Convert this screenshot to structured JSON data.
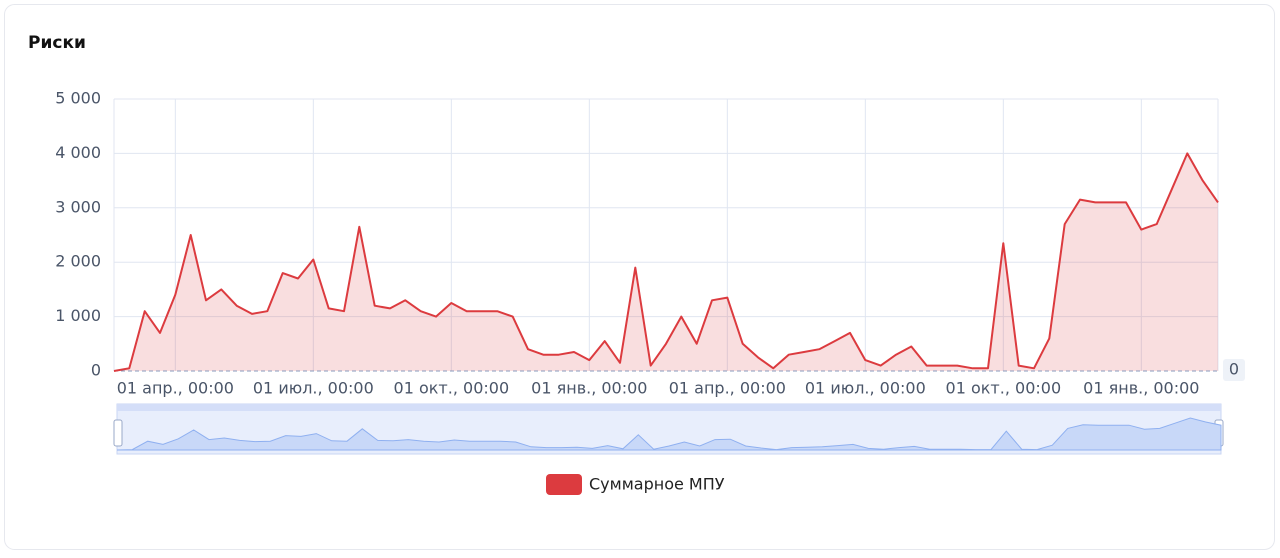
{
  "chart_data": {
    "type": "line",
    "title": "Риски",
    "categories": [
      null,
      null,
      null,
      null,
      "01 апр., 00:00",
      null,
      null,
      null,
      null,
      null,
      null,
      null,
      null,
      "01 июл., 00:00",
      null,
      null,
      null,
      null,
      null,
      null,
      null,
      null,
      "01 окт., 00:00",
      null,
      null,
      null,
      null,
      null,
      null,
      null,
      null,
      "01 янв., 00:00",
      null,
      null,
      null,
      null,
      null,
      null,
      null,
      null,
      "01 апр., 00:00",
      null,
      null,
      null,
      null,
      null,
      null,
      null,
      null,
      "01 июл., 00:00",
      null,
      null,
      null,
      null,
      null,
      null,
      null,
      null,
      "01 окт., 00:00",
      null,
      null,
      null,
      null,
      null,
      null,
      null,
      null,
      "01 янв., 00:00",
      null,
      null,
      null,
      null,
      null
    ],
    "series": [
      {
        "name": "Суммарное МПУ",
        "color": "#dc3b3f",
        "values": [
          0,
          50,
          1100,
          700,
          1400,
          2500,
          1300,
          1500,
          1200,
          1050,
          1100,
          1800,
          1700,
          2050,
          1150,
          1100,
          2650,
          1200,
          1150,
          1300,
          1100,
          1000,
          1250,
          1100,
          1100,
          1100,
          1000,
          400,
          300,
          300,
          350,
          200,
          550,
          150,
          1900,
          100,
          500,
          1000,
          500,
          1300,
          1350,
          500,
          250,
          50,
          300,
          350,
          400,
          550,
          700,
          200,
          100,
          300,
          450,
          100,
          100,
          100,
          50,
          50,
          2350,
          100,
          50,
          600,
          2700,
          3150,
          3100,
          3100,
          3100,
          2600,
          2700,
          3350,
          4000,
          3500,
          3100
        ]
      }
    ],
    "ylim": [
      0,
      5000
    ],
    "yticks": [
      0,
      {
        "value": 1000,
        "label": "1 000"
      },
      {
        "value": 2000,
        "label": "2 000"
      },
      {
        "value": 3000,
        "label": "3 000"
      },
      {
        "value": 4000,
        "label": "4 000"
      },
      {
        "value": 5000,
        "label": "5 000"
      }
    ],
    "grid": true,
    "pointer_value": 0
  }
}
